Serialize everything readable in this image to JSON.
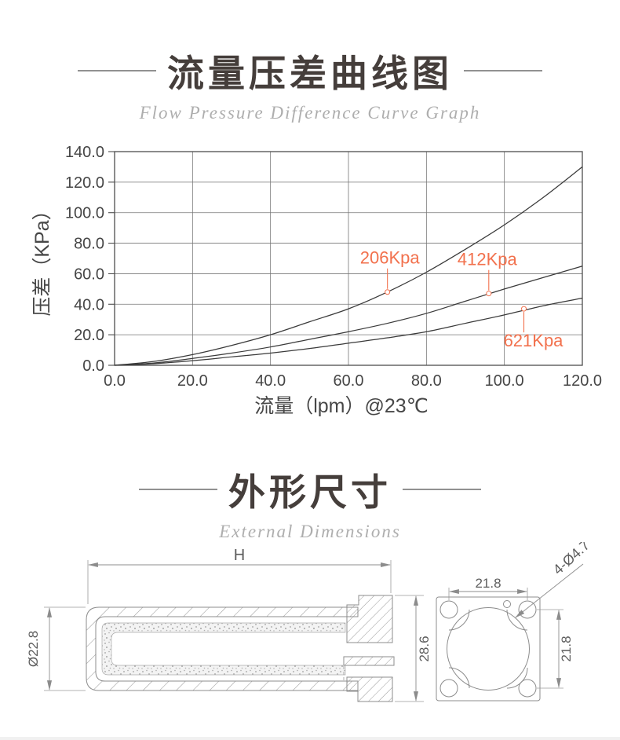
{
  "sections": {
    "flow_curve": {
      "title": "流量压差曲线图",
      "subtitle": "Flow Pressure Difference Curve Graph"
    },
    "dimensions": {
      "title": "外形尺寸",
      "subtitle": "External Dimensions"
    }
  },
  "chart_data": {
    "type": "line",
    "title": "",
    "xlabel": "流量（lpm）@23℃",
    "ylabel": "压差（KPa）",
    "xlim": [
      0,
      120
    ],
    "ylim": [
      0,
      140
    ],
    "grid": true,
    "legend_position": "none",
    "line_color": "#3a3a3a",
    "grid_color": "#767676",
    "axis_color": "#4d4d4d",
    "tick_text_color": "#454545",
    "annotation_color": "#f2714d",
    "xticks": {
      "values": [
        0,
        20,
        40,
        60,
        80,
        100,
        120
      ],
      "labels": [
        "0.0",
        "20.0",
        "40.0",
        "60.0",
        "80.0",
        "100.0",
        "120.0"
      ]
    },
    "yticks": {
      "values": [
        0,
        20,
        40,
        60,
        80,
        100,
        120,
        140
      ],
      "labels": [
        "0.0",
        "20.0",
        "40.0",
        "60.0",
        "80.0",
        "100.0",
        "120.0",
        "140.0"
      ]
    },
    "series": [
      {
        "name": "206Kpa",
        "x": [
          0,
          10,
          20,
          30,
          40,
          50,
          60,
          70,
          80,
          90,
          100,
          110,
          120
        ],
        "y": [
          0,
          2.5,
          7,
          13,
          20,
          28.5,
          37,
          48,
          61,
          76,
          92,
          110,
          130
        ]
      },
      {
        "name": "412Kpa",
        "x": [
          0,
          10,
          20,
          30,
          40,
          50,
          60,
          70,
          80,
          90,
          100,
          110,
          120
        ],
        "y": [
          0,
          1.5,
          4.5,
          8,
          12,
          17,
          22,
          27.5,
          34,
          42,
          50,
          57.5,
          65
        ]
      },
      {
        "name": "621Kpa",
        "x": [
          0,
          10,
          20,
          30,
          40,
          50,
          60,
          70,
          80,
          90,
          100,
          110,
          120
        ],
        "y": [
          0,
          1,
          3,
          5.5,
          8,
          11,
          14.5,
          18,
          22,
          27.5,
          33,
          39,
          44
        ]
      }
    ],
    "annotations": [
      {
        "label": "206Kpa",
        "x": 70,
        "y": 48,
        "side": "above",
        "text_dx": 3
      },
      {
        "label": "412Kpa",
        "x": 96,
        "y": 47,
        "side": "above",
        "text_dx": -2
      },
      {
        "label": "621Kpa",
        "x": 105,
        "y": 37,
        "side": "below",
        "text_dx": 12
      }
    ]
  },
  "drawings": {
    "side_view": {
      "dim_length": "H",
      "dim_diameter": "Ø22.8",
      "dim_height": "28.6"
    },
    "end_view": {
      "dim_hole_spacing_h": "21.8",
      "dim_hole_spacing_v": "21.8",
      "dim_holes": "4-Ø4.7"
    }
  }
}
